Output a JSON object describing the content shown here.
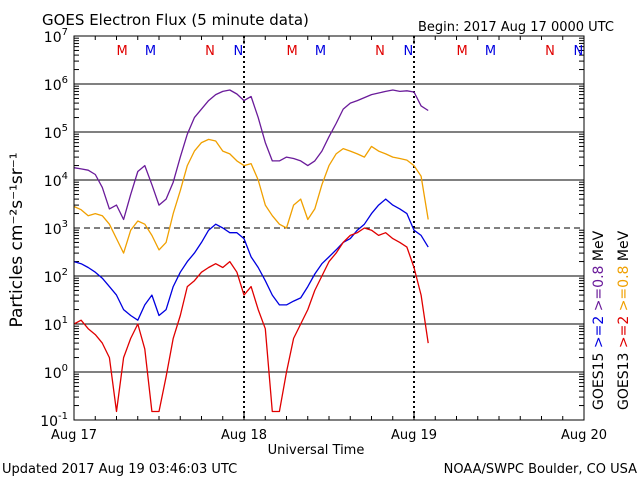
{
  "chart_data": {
    "type": "line",
    "title": "GOES Electron Flux (5 minute data)",
    "begin_label": "Begin: 2017 Aug 17 0000 UTC",
    "xlabel": "Universal Time",
    "ylabel": "Particles cm⁻²s⁻¹sr⁻¹",
    "y_scale": "log",
    "ylim": [
      0.1,
      10000000
    ],
    "y_ticks": [
      {
        "v": 0.1,
        "base": "10",
        "exp": "-1"
      },
      {
        "v": 1,
        "base": "10",
        "exp": "0"
      },
      {
        "v": 10,
        "base": "10",
        "exp": "1"
      },
      {
        "v": 100,
        "base": "10",
        "exp": "2"
      },
      {
        "v": 1000,
        "base": "10",
        "exp": "3"
      },
      {
        "v": 10000,
        "base": "10",
        "exp": "4"
      },
      {
        "v": 100000,
        "base": "10",
        "exp": "5"
      },
      {
        "v": 1000000,
        "base": "10",
        "exp": "6"
      },
      {
        "v": 10000000,
        "base": "10",
        "exp": "7"
      }
    ],
    "dashed_level": 1000,
    "xlim": [
      0,
      72
    ],
    "x_unit": "hours since Aug 17 0000 UTC",
    "x_ticks": [
      {
        "v": 0,
        "label": "Aug 17"
      },
      {
        "v": 24,
        "label": "Aug 18"
      },
      {
        "v": 48,
        "label": "Aug 19"
      },
      {
        "v": 72,
        "label": "Aug 20"
      }
    ],
    "grid": true,
    "markers": [
      {
        "x": 6.8,
        "label": "M",
        "color": "#e00000"
      },
      {
        "x": 10.8,
        "label": "M",
        "color": "#0000e0"
      },
      {
        "x": 19.2,
        "label": "N",
        "color": "#e00000"
      },
      {
        "x": 23.2,
        "label": "N",
        "color": "#0000e0"
      },
      {
        "x": 30.8,
        "label": "M",
        "color": "#e00000"
      },
      {
        "x": 34.8,
        "label": "M",
        "color": "#0000e0"
      },
      {
        "x": 43.2,
        "label": "N",
        "color": "#e00000"
      },
      {
        "x": 47.2,
        "label": "N",
        "color": "#0000e0"
      },
      {
        "x": 54.8,
        "label": "M",
        "color": "#e00000"
      },
      {
        "x": 58.8,
        "label": "M",
        "color": "#0000e0"
      },
      {
        "x": 67.2,
        "label": "N",
        "color": "#e00000"
      },
      {
        "x": 71.2,
        "label": "N",
        "color": "#0000e0"
      }
    ],
    "legend": [
      {
        "sat": "GOES15",
        "energy": ">=2",
        "energy2": ">=0.8",
        "unit": "MeV",
        "color2": "#0000e0",
        "color08": "#6a1b9a"
      },
      {
        "sat": "GOES13",
        "energy": ">=2",
        "energy2": ">=0.8",
        "unit": "MeV",
        "color2": "#e00000",
        "color08": "#f0a000"
      }
    ],
    "series": [
      {
        "name": "GOES15 >=0.8 MeV",
        "color": "#6a1b9a",
        "x": [
          0,
          1,
          2,
          3,
          4,
          5,
          6,
          7,
          8,
          9,
          10,
          11,
          12,
          13,
          14,
          15,
          16,
          17,
          18,
          19,
          20,
          21,
          22,
          23,
          24,
          25,
          26,
          27,
          28,
          29,
          30,
          31,
          32,
          33,
          34,
          35,
          36,
          37,
          38,
          39,
          40,
          41,
          42,
          43,
          44,
          45,
          46,
          47,
          48,
          49,
          50
        ],
        "y": [
          18000,
          17000,
          16000,
          13000,
          7000,
          2500,
          3000,
          1500,
          5000,
          15000,
          20000,
          8000,
          3000,
          4000,
          9000,
          30000,
          90000,
          200000,
          300000,
          450000,
          600000,
          700000,
          750000,
          620000,
          450000,
          550000,
          200000,
          60000,
          25000,
          25000,
          30000,
          28000,
          25000,
          20000,
          25000,
          40000,
          80000,
          150000,
          300000,
          400000,
          450000,
          520000,
          600000,
          650000,
          700000,
          750000,
          700000,
          720000,
          680000,
          350000,
          280000
        ]
      },
      {
        "name": "GOES13 >=0.8 MeV",
        "color": "#f0a000",
        "x": [
          0,
          1,
          2,
          3,
          4,
          5,
          6,
          7,
          8,
          9,
          10,
          11,
          12,
          13,
          14,
          15,
          16,
          17,
          18,
          19,
          20,
          21,
          22,
          23,
          24,
          25,
          26,
          27,
          28,
          29,
          30,
          31,
          32,
          33,
          34,
          35,
          36,
          37,
          38,
          39,
          40,
          41,
          42,
          43,
          44,
          45,
          46,
          47,
          48,
          49,
          50
        ],
        "y": [
          2800,
          2400,
          1800,
          2000,
          1800,
          1200,
          600,
          300,
          900,
          1400,
          1200,
          700,
          350,
          500,
          2000,
          6000,
          20000,
          40000,
          60000,
          70000,
          65000,
          40000,
          35000,
          25000,
          20000,
          22000,
          10000,
          3000,
          1800,
          1200,
          1000,
          3000,
          4000,
          1500,
          2500,
          8000,
          20000,
          35000,
          45000,
          40000,
          35000,
          30000,
          50000,
          40000,
          35000,
          30000,
          28000,
          26000,
          20000,
          12000,
          1500
        ]
      },
      {
        "name": "GOES15 >=2 MeV",
        "color": "#0000e0",
        "x": [
          0,
          1,
          2,
          3,
          4,
          5,
          6,
          7,
          8,
          9,
          10,
          11,
          12,
          13,
          14,
          15,
          16,
          17,
          18,
          19,
          20,
          21,
          22,
          23,
          24,
          25,
          26,
          27,
          28,
          29,
          30,
          31,
          32,
          33,
          34,
          35,
          36,
          37,
          38,
          39,
          40,
          41,
          42,
          43,
          44,
          45,
          46,
          47,
          48,
          49,
          50
        ],
        "y": [
          200,
          180,
          150,
          120,
          90,
          60,
          40,
          20,
          15,
          12,
          25,
          40,
          15,
          20,
          60,
          120,
          200,
          300,
          500,
          900,
          1200,
          1000,
          800,
          800,
          600,
          250,
          150,
          80,
          40,
          25,
          25,
          30,
          35,
          60,
          110,
          180,
          250,
          350,
          500,
          600,
          900,
          1200,
          2000,
          3000,
          4000,
          3000,
          2500,
          2000,
          900,
          700,
          400
        ]
      },
      {
        "name": "GOES13 >=2 MeV",
        "color": "#e00000",
        "x": [
          0,
          1,
          2,
          3,
          4,
          5,
          6,
          7,
          8,
          9,
          10,
          11,
          12,
          13,
          14,
          15,
          16,
          17,
          18,
          19,
          20,
          21,
          22,
          23,
          24,
          25,
          26,
          27,
          28,
          29,
          30,
          31,
          32,
          33,
          34,
          35,
          36,
          37,
          38,
          39,
          40,
          41,
          42,
          43,
          44,
          45,
          46,
          47,
          48,
          49,
          50
        ],
        "y": [
          10,
          12,
          8,
          6,
          4,
          2,
          0.15,
          2,
          5,
          10,
          3,
          0.15,
          0.15,
          0.8,
          5,
          15,
          60,
          80,
          120,
          150,
          180,
          150,
          200,
          120,
          40,
          60,
          20,
          8,
          0.15,
          0.15,
          1,
          5,
          10,
          20,
          50,
          100,
          200,
          300,
          500,
          700,
          800,
          1000,
          900,
          700,
          800,
          600,
          500,
          400,
          150,
          40,
          4
        ]
      }
    ]
  },
  "footer": {
    "updated": "Updated 2017 Aug 19 03:46:03 UTC",
    "source": "NOAA/SWPC Boulder, CO USA"
  }
}
